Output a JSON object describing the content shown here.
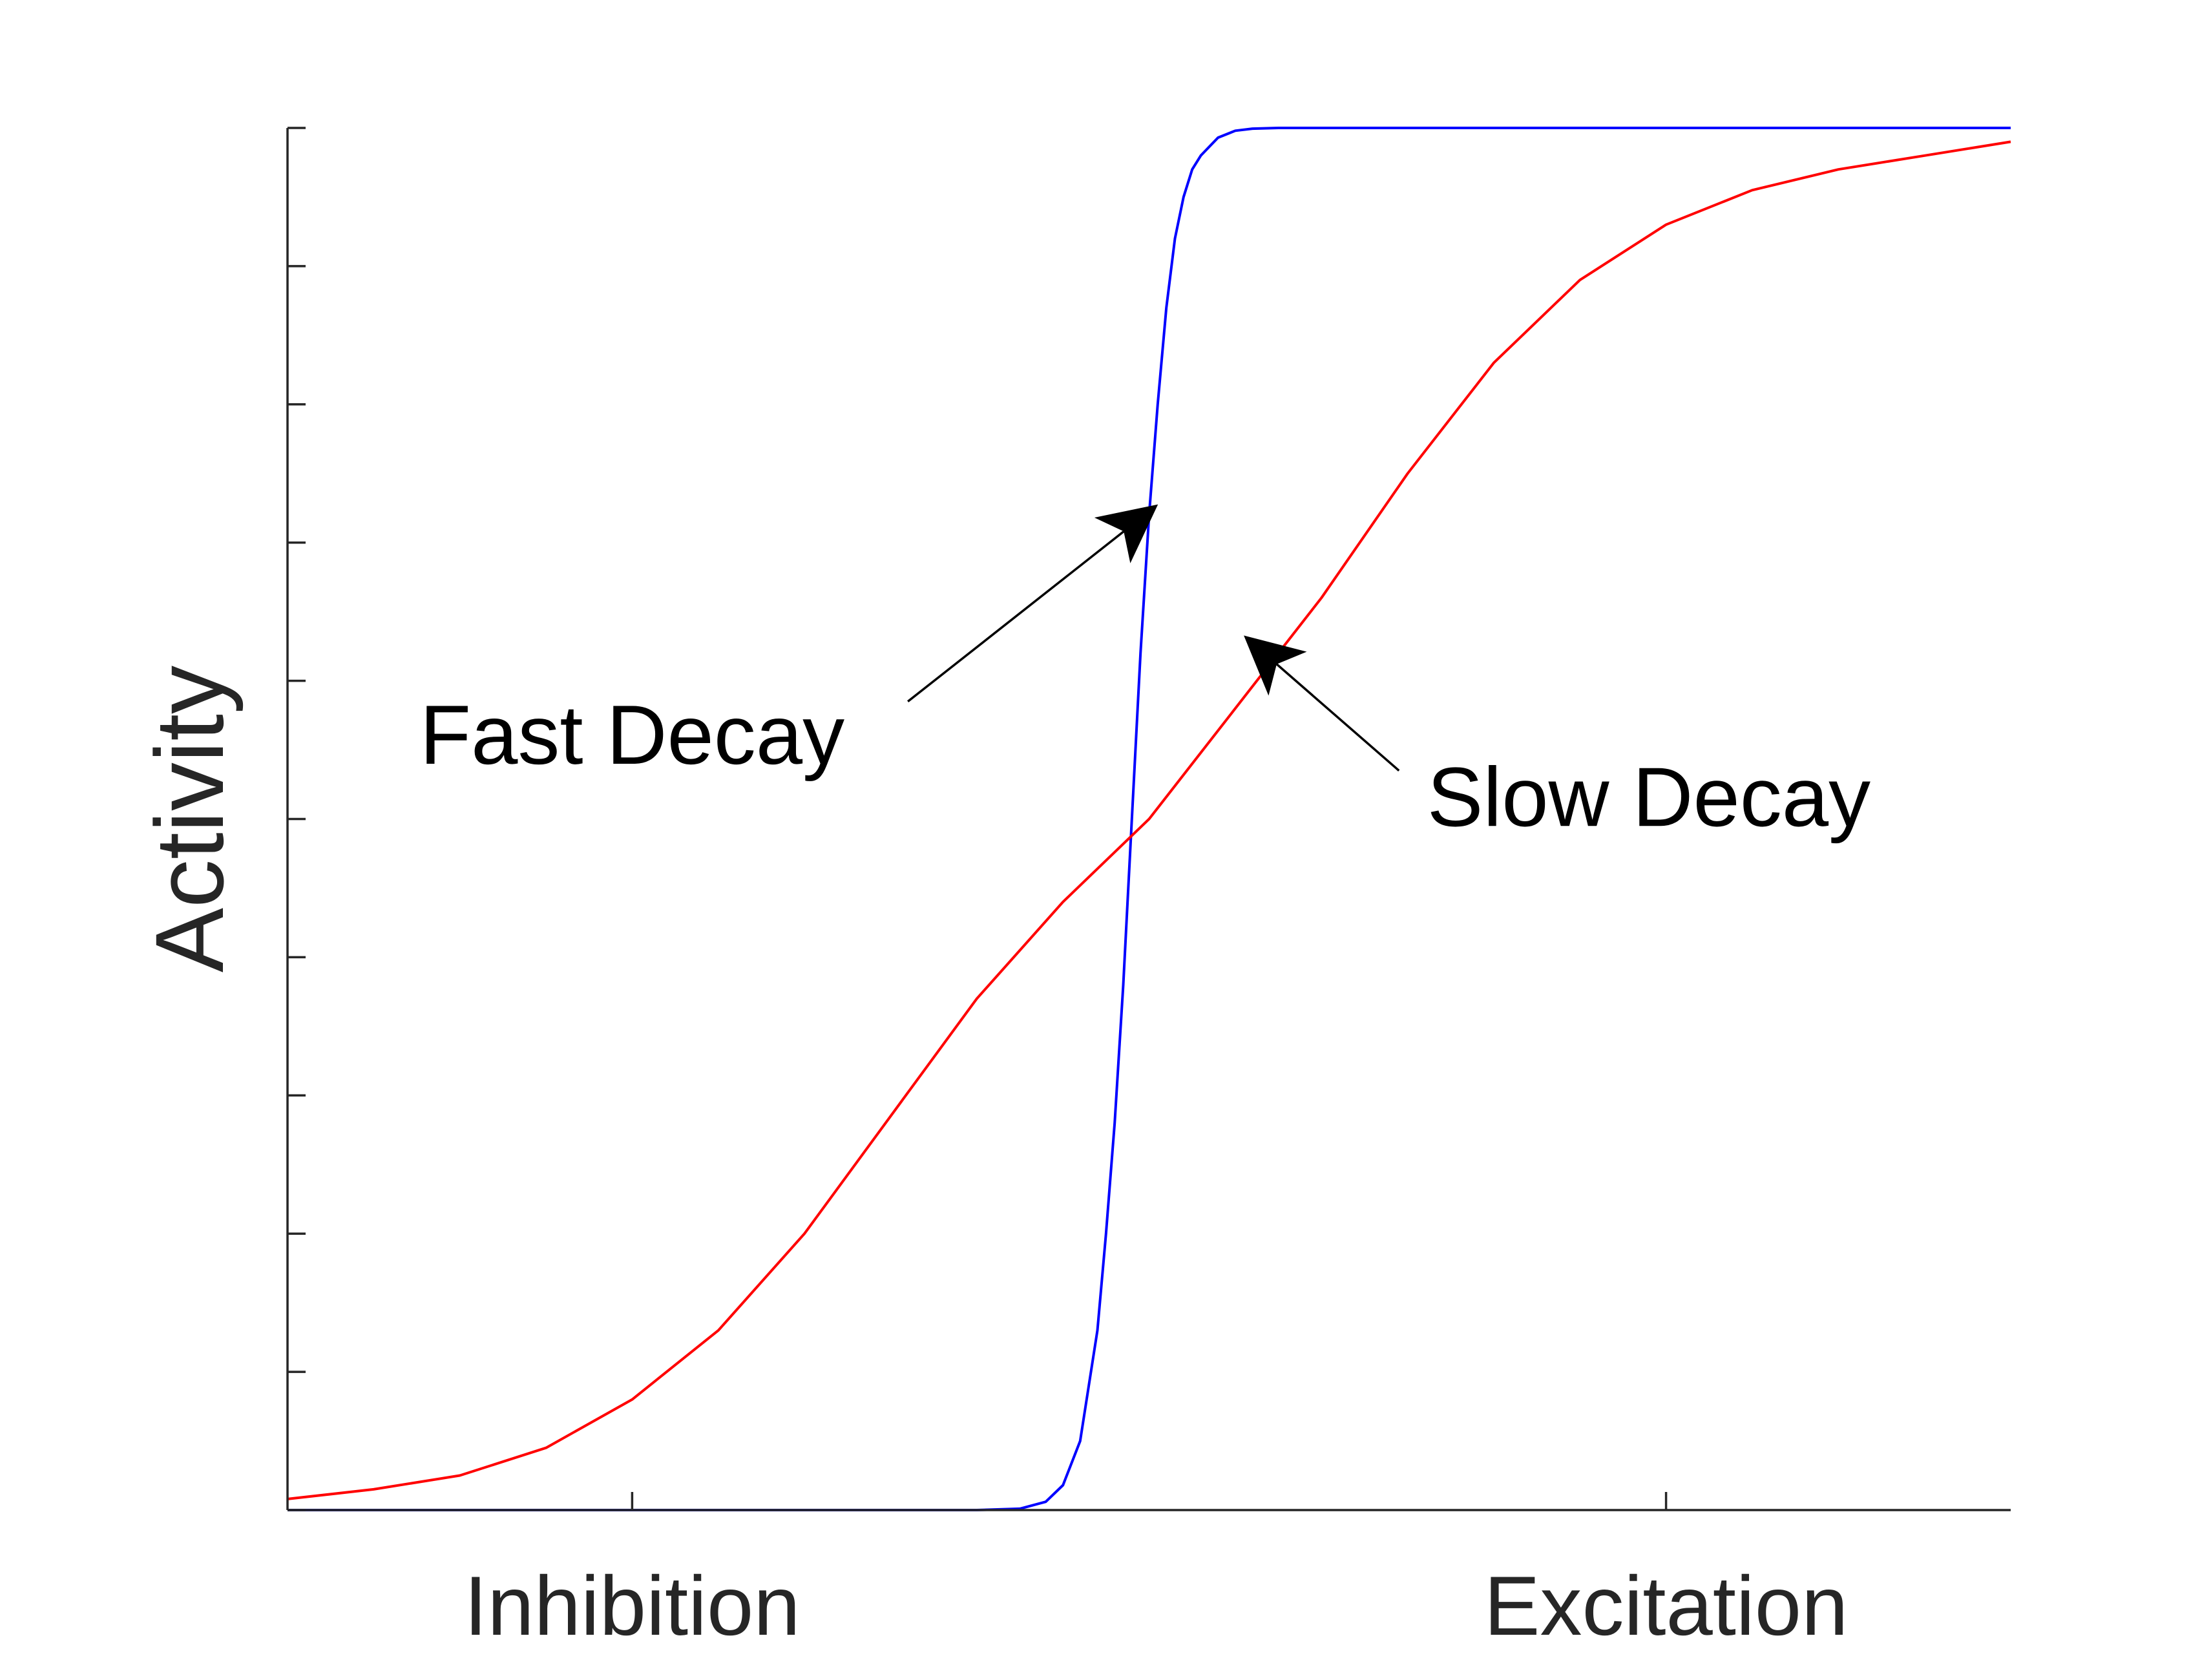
{
  "chart_data": {
    "type": "line",
    "ylabel": "Activity",
    "xlim": [
      -1,
      1
    ],
    "ylim": [
      0,
      1
    ],
    "x_ticks": [
      {
        "value": -0.6,
        "label": "Inhibition"
      },
      {
        "value": 0.6,
        "label": "Excitation"
      }
    ],
    "y_tick_count": 11,
    "grid": false,
    "legend": "none",
    "series": [
      {
        "color": "#0000ff",
        "x": [
          -1,
          -0.2,
          -0.15,
          -0.12,
          -0.1,
          -0.08,
          -0.06,
          -0.05,
          -0.04,
          -0.03,
          -0.02,
          -0.01,
          0,
          0.01,
          0.02,
          0.03,
          0.04,
          0.05,
          0.06,
          0.08,
          0.1,
          0.12,
          0.15,
          0.2,
          1
        ],
        "y": [
          0,
          0,
          0.001,
          0.006,
          0.018,
          0.05,
          0.13,
          0.2,
          0.28,
          0.38,
          0.5,
          0.62,
          0.72,
          0.8,
          0.87,
          0.92,
          0.95,
          0.97,
          0.98,
          0.993,
          0.998,
          0.9995,
          1,
          1,
          1
        ]
      },
      {
        "color": "#ff0000",
        "x": [
          -1,
          -0.9,
          -0.8,
          -0.7,
          -0.6,
          -0.5,
          -0.4,
          -0.3,
          -0.2,
          -0.1,
          0,
          0.1,
          0.2,
          0.3,
          0.4,
          0.5,
          0.6,
          0.7,
          0.8,
          0.9,
          1
        ],
        "y": [
          0.008,
          0.015,
          0.025,
          0.045,
          0.08,
          0.13,
          0.2,
          0.285,
          0.37,
          0.44,
          0.5,
          0.58,
          0.66,
          0.75,
          0.83,
          0.89,
          0.93,
          0.955,
          0.97,
          0.98,
          0.99
        ]
      }
    ],
    "annotations": [
      {
        "text": "Fast Decay",
        "text_x": -0.6,
        "text_y": 0.54,
        "arrow_from": [
          -0.28,
          0.585
        ],
        "arrow_to": [
          0.005,
          0.725
        ]
      },
      {
        "text": "Slow Decay",
        "text_x": 0.58,
        "text_y": 0.495,
        "arrow_from": [
          0.29,
          0.535
        ],
        "arrow_to": [
          0.115,
          0.63
        ]
      }
    ]
  }
}
